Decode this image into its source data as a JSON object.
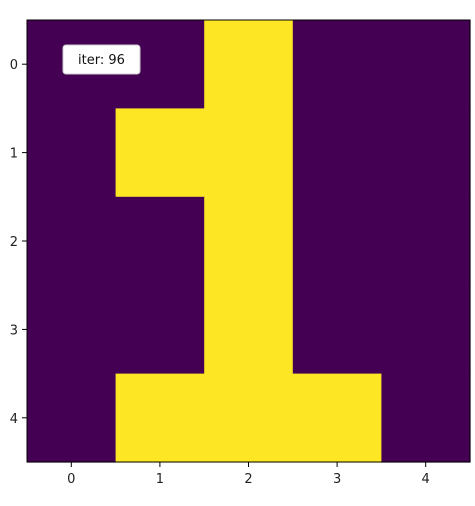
{
  "chart_data": {
    "type": "heatmap",
    "title": "",
    "xlabel": "",
    "ylabel": "",
    "x_ticks": [
      "0",
      "1",
      "2",
      "3",
      "4"
    ],
    "y_ticks": [
      "0",
      "1",
      "2",
      "3",
      "4"
    ],
    "values": [
      [
        0,
        0,
        1,
        0,
        0
      ],
      [
        0,
        1,
        1,
        0,
        0
      ],
      [
        0,
        0,
        1,
        0,
        0
      ],
      [
        0,
        0,
        1,
        0,
        0
      ],
      [
        0,
        1,
        1,
        1,
        0
      ]
    ],
    "colormap": {
      "low": "#440154",
      "high": "#fde725"
    },
    "grid": false,
    "annotation": "iter: 96"
  }
}
